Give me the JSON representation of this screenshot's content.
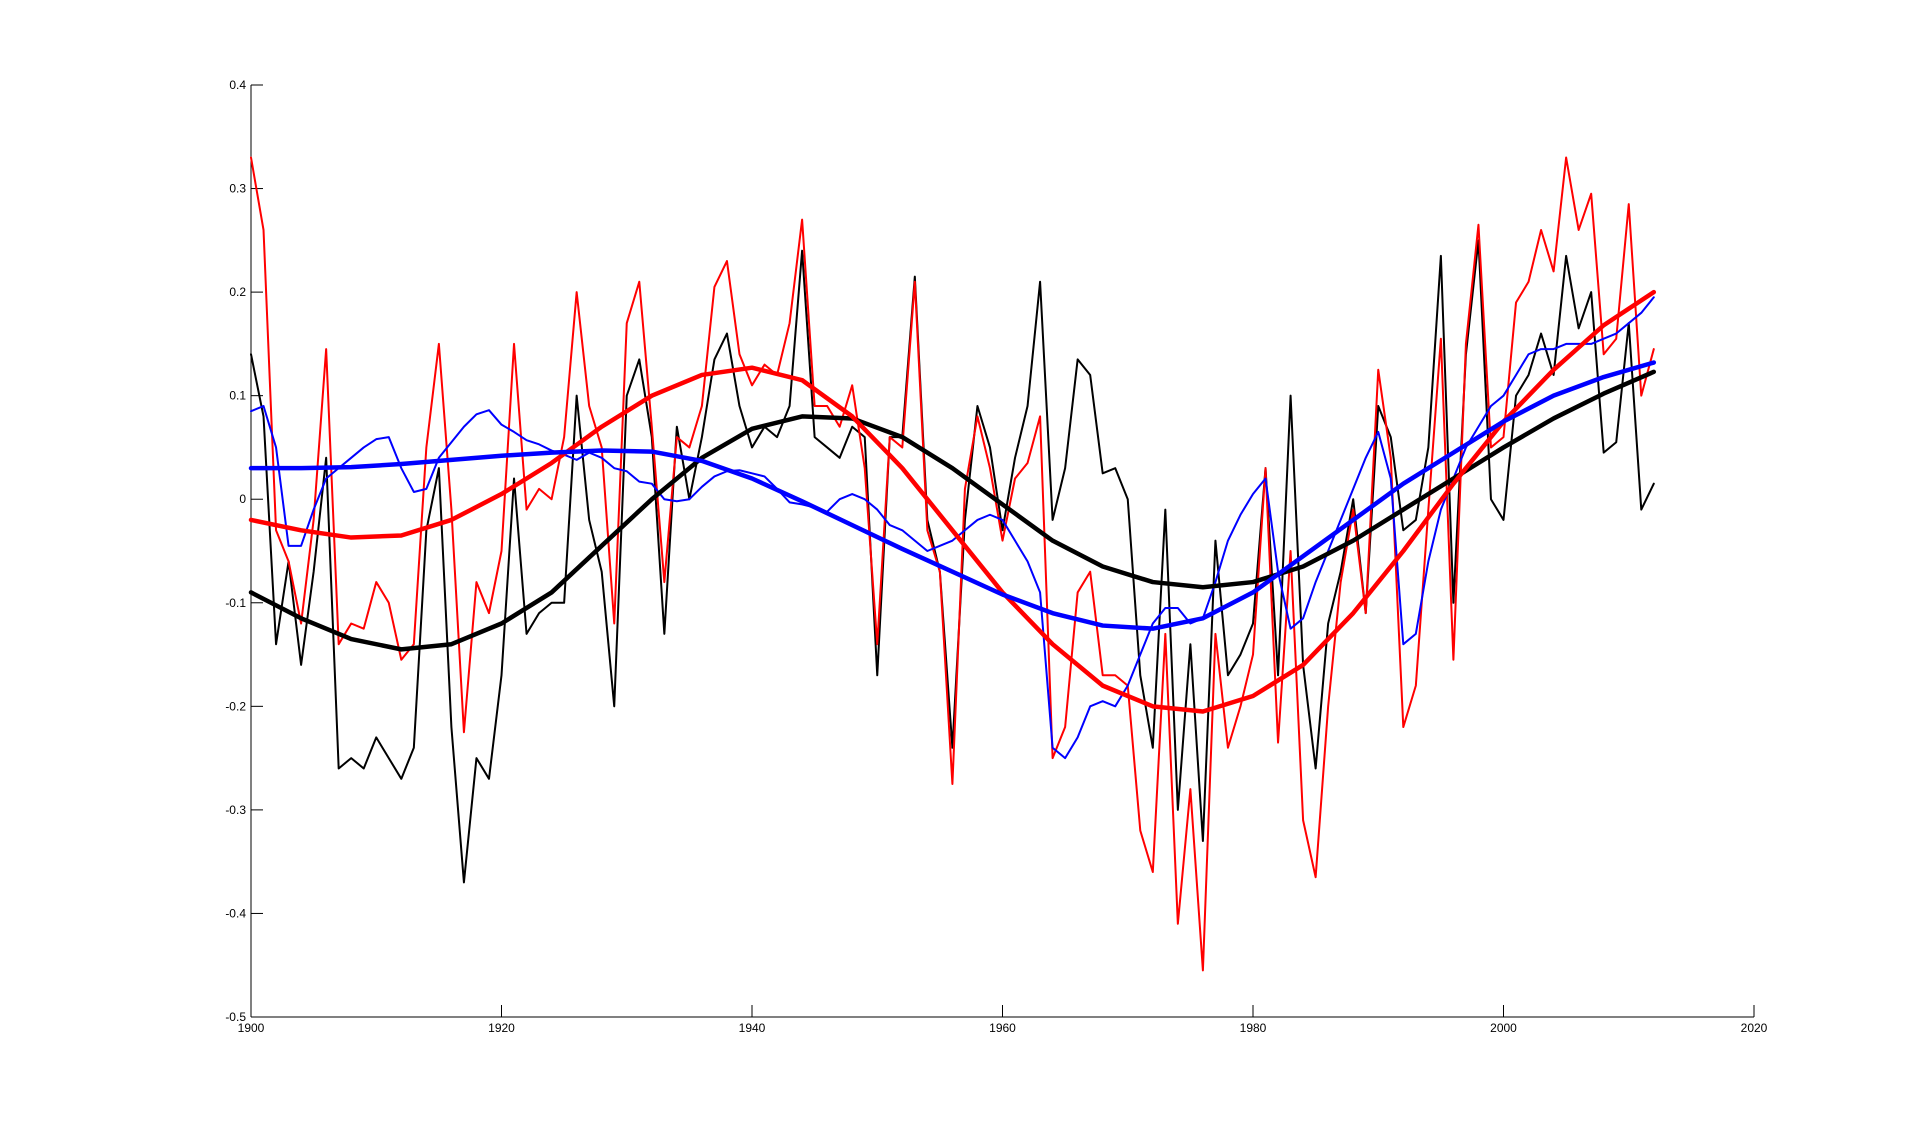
{
  "chart_data": {
    "type": "line",
    "x": [
      1900,
      1901,
      1902,
      1903,
      1904,
      1905,
      1906,
      1907,
      1908,
      1909,
      1910,
      1911,
      1912,
      1913,
      1914,
      1915,
      1916,
      1917,
      1918,
      1919,
      1920,
      1921,
      1922,
      1923,
      1924,
      1925,
      1926,
      1927,
      1928,
      1929,
      1930,
      1931,
      1932,
      1933,
      1934,
      1935,
      1936,
      1937,
      1938,
      1939,
      1940,
      1941,
      1942,
      1943,
      1944,
      1945,
      1946,
      1947,
      1948,
      1949,
      1950,
      1951,
      1952,
      1953,
      1954,
      1955,
      1956,
      1957,
      1958,
      1959,
      1960,
      1961,
      1962,
      1963,
      1964,
      1965,
      1966,
      1967,
      1968,
      1969,
      1970,
      1971,
      1972,
      1973,
      1974,
      1975,
      1976,
      1977,
      1978,
      1979,
      1980,
      1981,
      1982,
      1983,
      1984,
      1985,
      1986,
      1987,
      1988,
      1989,
      1990,
      1991,
      1992,
      1993,
      1994,
      1995,
      1996,
      1997,
      1998,
      1999,
      2000,
      2001,
      2002,
      2003,
      2004,
      2005,
      2006,
      2007,
      2008,
      2009,
      2010,
      2011,
      2012
    ],
    "series": [
      {
        "color": "#000000",
        "linewidth": 2,
        "values": [
          0.14,
          0.08,
          -0.14,
          -0.06,
          -0.16,
          -0.07,
          0.04,
          -0.26,
          -0.25,
          -0.26,
          -0.23,
          -0.25,
          -0.27,
          -0.24,
          -0.03,
          0.03,
          -0.22,
          -0.37,
          -0.25,
          -0.27,
          -0.17,
          0.02,
          -0.13,
          -0.11,
          -0.1,
          -0.1,
          0.1,
          -0.02,
          -0.07,
          -0.2,
          0.1,
          0.135,
          0.06,
          -0.13,
          0.07,
          0,
          0.06,
          0.135,
          0.16,
          0.09,
          0.05,
          0.07,
          0.06,
          0.09,
          0.24,
          0.06,
          0.05,
          0.04,
          0.07,
          0.06,
          -0.17,
          0.06,
          0.06,
          0.215,
          -0.02,
          -0.07,
          -0.24,
          -0.02,
          0.09,
          0.05,
          -0.03,
          0.04,
          0.09,
          0.21,
          -0.02,
          0.03,
          0.135,
          0.12,
          0.025,
          0.03,
          0,
          -0.17,
          -0.24,
          -0.01,
          -0.3,
          -0.14,
          -0.33,
          -0.04,
          -0.17,
          -0.15,
          -0.12,
          0.03,
          -0.17,
          0.1,
          -0.16,
          -0.26,
          -0.12,
          -0.07,
          0,
          -0.11,
          0.09,
          0.06,
          -0.03,
          -0.02,
          0.05,
          0.235,
          -0.1,
          0.14,
          0.25,
          0,
          -0.02,
          0.1,
          0.12,
          0.16,
          0.12,
          0.235,
          0.165,
          0.2,
          0.045,
          0.055,
          0.17,
          -0.01,
          0.015
        ]
      },
      {
        "color": "#ff0000",
        "linewidth": 2,
        "values": [
          0.33,
          0.26,
          -0.03,
          -0.06,
          -0.12,
          -0.02,
          0.145,
          -0.14,
          -0.12,
          -0.125,
          -0.08,
          -0.1,
          -0.155,
          -0.14,
          0.05,
          0.15,
          -0.01,
          -0.225,
          -0.08,
          -0.11,
          -0.05,
          0.15,
          -0.01,
          0.01,
          0,
          0.06,
          0.2,
          0.09,
          0.05,
          -0.12,
          0.17,
          0.21,
          0.07,
          -0.08,
          0.06,
          0.05,
          0.09,
          0.205,
          0.23,
          0.14,
          0.11,
          0.13,
          0.12,
          0.17,
          0.27,
          0.09,
          0.09,
          0.07,
          0.11,
          0.03,
          -0.14,
          0.06,
          0.05,
          0.21,
          -0.03,
          -0.07,
          -0.275,
          0.01,
          0.08,
          0.03,
          -0.04,
          0.02,
          0.035,
          0.08,
          -0.25,
          -0.22,
          -0.09,
          -0.07,
          -0.17,
          -0.17,
          -0.18,
          -0.32,
          -0.36,
          -0.13,
          -0.41,
          -0.28,
          -0.455,
          -0.13,
          -0.24,
          -0.2,
          -0.15,
          0.03,
          -0.235,
          -0.05,
          -0.31,
          -0.365,
          -0.2,
          -0.08,
          -0.01,
          -0.11,
          0.125,
          0.04,
          -0.22,
          -0.18,
          -0.01,
          0.155,
          -0.155,
          0.15,
          0.265,
          0.05,
          0.06,
          0.19,
          0.21,
          0.26,
          0.22,
          0.33,
          0.26,
          0.295,
          0.14,
          0.155,
          0.285,
          0.1,
          0.145
        ]
      },
      {
        "color": "#0000ff",
        "linewidth": 2,
        "values": [
          0.085,
          0.09,
          0.05,
          -0.045,
          -0.045,
          -0.01,
          0.02,
          0.03,
          0.04,
          0.05,
          0.058,
          0.06,
          0.03,
          0.007,
          0.01,
          0.04,
          0.055,
          0.07,
          0.082,
          0.086,
          0.072,
          0.065,
          0.057,
          0.053,
          0.047,
          0.043,
          0.038,
          0.045,
          0.04,
          0.03,
          0.027,
          0.017,
          0.015,
          0,
          -0.002,
          0,
          0.012,
          0.022,
          0.027,
          0.028,
          0.025,
          0.022,
          0.01,
          -0.003,
          -0.005,
          -0.008,
          -0.012,
          0,
          0.005,
          0,
          -0.01,
          -0.025,
          -0.03,
          -0.04,
          -0.05,
          -0.045,
          -0.04,
          -0.03,
          -0.02,
          -0.015,
          -0.02,
          -0.04,
          -0.06,
          -0.09,
          -0.24,
          -0.25,
          -0.23,
          -0.2,
          -0.195,
          -0.2,
          -0.18,
          -0.15,
          -0.12,
          -0.105,
          -0.105,
          -0.12,
          -0.115,
          -0.08,
          -0.04,
          -0.015,
          0.005,
          0.02,
          -0.07,
          -0.125,
          -0.115,
          -0.08,
          -0.05,
          -0.02,
          0.01,
          0.04,
          0.065,
          0.02,
          -0.14,
          -0.13,
          -0.06,
          -0.01,
          0.02,
          0.05,
          0.07,
          0.09,
          0.1,
          0.12,
          0.14,
          0.145,
          0.145,
          0.15,
          0.15,
          0.15,
          0.155,
          0.16,
          0.17,
          0.18,
          0.195
        ]
      },
      {
        "color": "#000000",
        "linewidth": 4.5,
        "x": [
          1900,
          1904,
          1908,
          1912,
          1916,
          1920,
          1924,
          1928,
          1932,
          1936,
          1940,
          1944,
          1948,
          1952,
          1956,
          1960,
          1964,
          1968,
          1972,
          1976,
          1980,
          1984,
          1988,
          1992,
          1996,
          2000,
          2004,
          2008,
          2012
        ],
        "values": [
          -0.09,
          -0.115,
          -0.135,
          -0.145,
          -0.14,
          -0.12,
          -0.09,
          -0.045,
          0,
          0.04,
          0.068,
          0.08,
          0.078,
          0.06,
          0.03,
          -0.005,
          -0.04,
          -0.065,
          -0.08,
          -0.085,
          -0.08,
          -0.065,
          -0.04,
          -0.01,
          0.02,
          0.05,
          0.078,
          0.102,
          0.123
        ]
      },
      {
        "color": "#ff0000",
        "linewidth": 4.5,
        "x": [
          1900,
          1904,
          1908,
          1912,
          1916,
          1920,
          1924,
          1928,
          1932,
          1936,
          1940,
          1944,
          1948,
          1952,
          1956,
          1960,
          1964,
          1968,
          1972,
          1976,
          1980,
          1984,
          1988,
          1992,
          1996,
          2000,
          2004,
          2008,
          2012
        ],
        "values": [
          -0.02,
          -0.03,
          -0.037,
          -0.035,
          -0.02,
          0.005,
          0.035,
          0.07,
          0.1,
          0.12,
          0.127,
          0.115,
          0.08,
          0.03,
          -0.03,
          -0.09,
          -0.14,
          -0.18,
          -0.2,
          -0.205,
          -0.19,
          -0.16,
          -0.11,
          -0.05,
          0.015,
          0.075,
          0.125,
          0.168,
          0.2
        ]
      },
      {
        "color": "#0000ff",
        "linewidth": 4.5,
        "x": [
          1900,
          1904,
          1908,
          1912,
          1916,
          1920,
          1924,
          1928,
          1932,
          1936,
          1940,
          1944,
          1948,
          1952,
          1956,
          1960,
          1964,
          1968,
          1972,
          1976,
          1980,
          1984,
          1988,
          1992,
          1996,
          2000,
          2004,
          2008,
          2012
        ],
        "values": [
          0.03,
          0.03,
          0.031,
          0.034,
          0.038,
          0.042,
          0.045,
          0.047,
          0.046,
          0.037,
          0.02,
          -0.002,
          -0.025,
          -0.048,
          -0.07,
          -0.092,
          -0.11,
          -0.122,
          -0.125,
          -0.115,
          -0.09,
          -0.055,
          -0.02,
          0.015,
          0.045,
          0.075,
          0.1,
          0.118,
          0.132
        ]
      }
    ],
    "xlim": [
      1900,
      2020
    ],
    "xticks": [
      1900,
      1920,
      1940,
      1960,
      1980,
      2000,
      2020
    ],
    "ylim": [
      -0.5,
      0.4
    ],
    "yticks": [
      -0.5,
      -0.4,
      -0.3,
      -0.2,
      -0.1,
      0,
      0.1,
      0.2,
      0.3,
      0.4
    ],
    "grid": false
  }
}
